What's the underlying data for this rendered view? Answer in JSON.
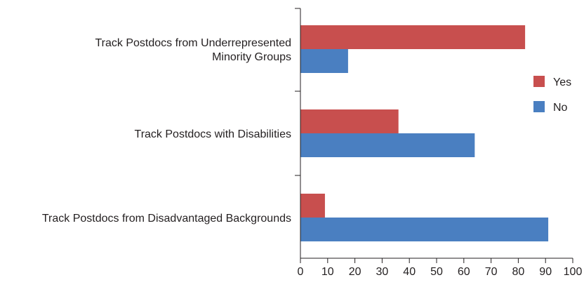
{
  "chart_data": {
    "type": "bar",
    "orientation": "horizontal",
    "categories": [
      [
        "Track Postdocs from Underrepresented",
        "Minority Groups"
      ],
      [
        "Track Postdocs with Disabilities"
      ],
      [
        "Track Postdocs from Disadvantaged Backgrounds"
      ]
    ],
    "series": [
      {
        "name": "Yes",
        "color": "#c84f4e",
        "values": [
          82.5,
          36,
          9
        ]
      },
      {
        "name": "No",
        "color": "#4a7fc1",
        "values": [
          17.5,
          64,
          91
        ]
      }
    ],
    "xlim": [
      0,
      100
    ],
    "xticks": [
      0,
      10,
      20,
      30,
      40,
      50,
      60,
      70,
      80,
      90,
      100
    ],
    "title": "",
    "xlabel": "",
    "ylabel": "",
    "grid": false,
    "legend_position": "right"
  }
}
